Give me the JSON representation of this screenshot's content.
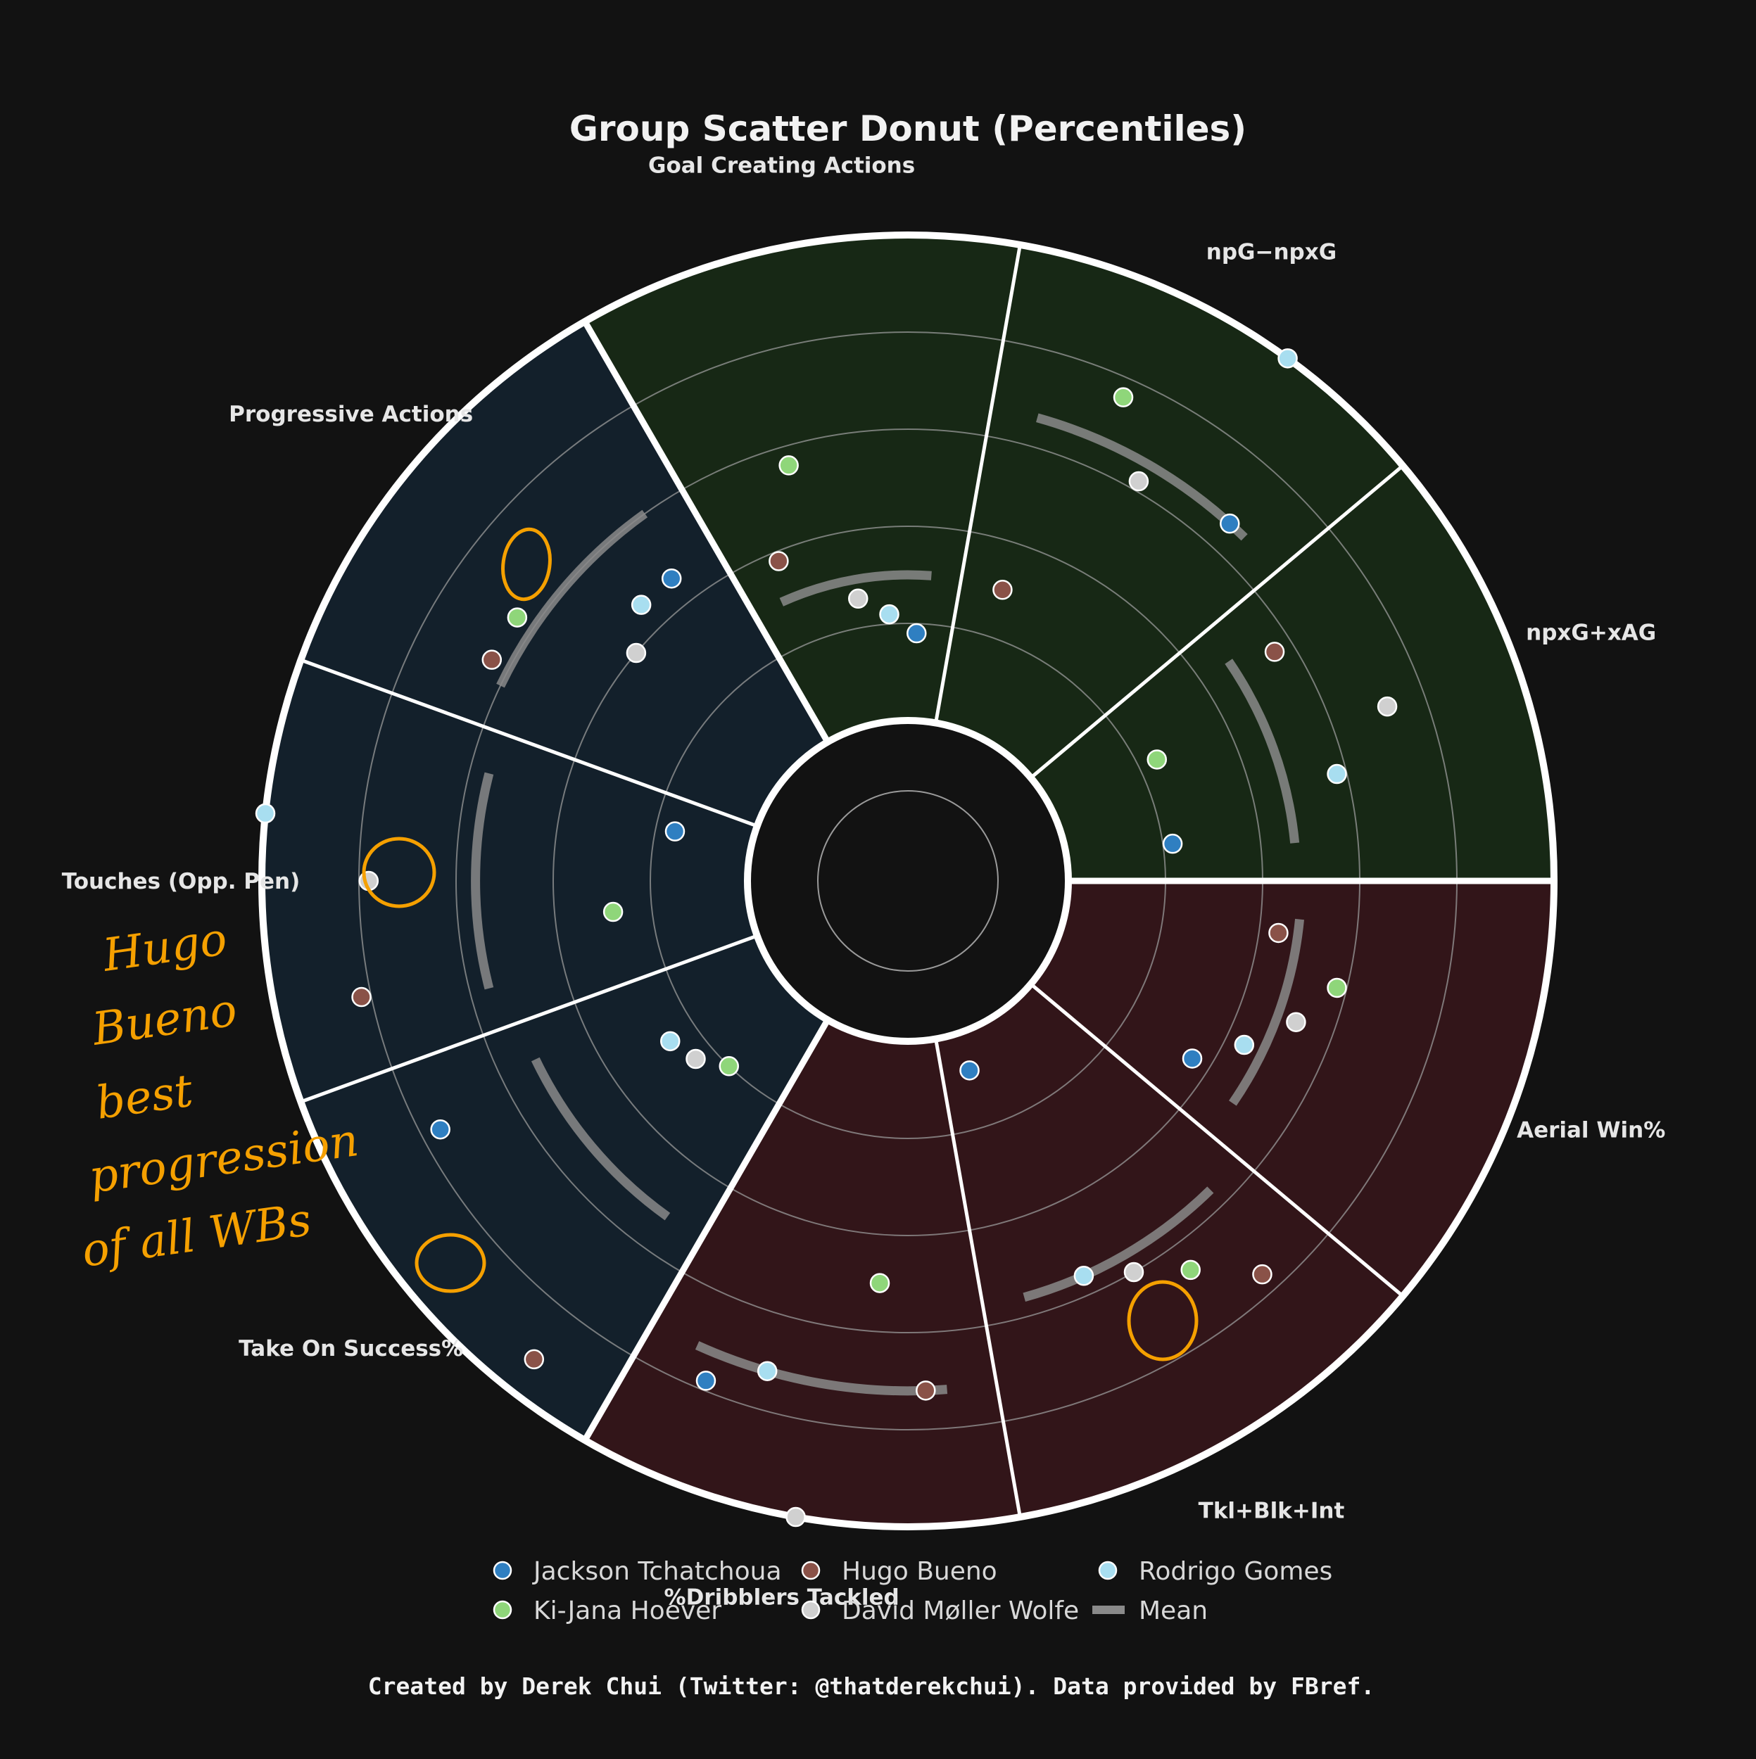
{
  "title": "Group Scatter Donut (Percentiles)",
  "footer": "Created by Derek Chui (Twitter: @thatderekchui). Data provided by FBref.",
  "colors": {
    "background": "#121212",
    "attacking_sector": "#172815",
    "possession_sector": "#13202b",
    "defending_sector": "#321519",
    "ring_border": "#ffffff",
    "gridline": "#9a9a9a",
    "mean_arc": "#8a8a8a",
    "annotation": "#f5a000"
  },
  "annotation_text": [
    "Hugo",
    "Bueno",
    "best",
    "progression",
    "of all WBs"
  ],
  "players": [
    {
      "name": "Jackson Tchatchoua",
      "color": "#2f7fc1"
    },
    {
      "name": "Hugo Bueno",
      "color": "#8a5248"
    },
    {
      "name": "Rodrigo Gomes",
      "color": "#a8def0"
    },
    {
      "name": "Ki-Jana Hoever",
      "color": "#8fd67a"
    },
    {
      "name": "David Møller Wolfe",
      "color": "#d0d0d0"
    }
  ],
  "legend": {
    "items": [
      {
        "label": "Jackson Tchatchoua",
        "kind": "dot",
        "color": "#2f7fc1"
      },
      {
        "label": "Hugo Bueno",
        "kind": "dot",
        "color": "#8a5248"
      },
      {
        "label": "Rodrigo Gomes",
        "kind": "dot",
        "color": "#a8def0"
      },
      {
        "label": "Ki-Jana Hoever",
        "kind": "dot",
        "color": "#8fd67a"
      },
      {
        "label": "David Møller Wolfe",
        "kind": "dot",
        "color": "#d0d0d0"
      },
      {
        "label": "Mean",
        "kind": "line",
        "color": "#8a8a8a"
      }
    ]
  },
  "chart_data": {
    "type": "scatter",
    "projection": "polar donut",
    "title": "Group Scatter Donut (Percentiles)",
    "rlim": [
      0,
      100
    ],
    "grid": true,
    "legend_position": "bottom",
    "categories": [
      {
        "name": "npxG+xAG",
        "group": "attacking",
        "values": {
          "Jackson Tchatchoua": 22,
          "Hugo Bueno": 56,
          "Rodrigo Gomes": 58,
          "Ki-Jana Hoever": 24,
          "David Møller Wolfe": 72
        },
        "mean": 47
      },
      {
        "name": "npG−npxG",
        "group": "attacking",
        "values": {
          "Jackson Tchatchoua": 66,
          "Hugo Bueno": 30,
          "Rodrigo Gomes": 100,
          "Ki-Jana Hoever": 76,
          "David Møller Wolfe": 62
        },
        "mean": 66
      },
      {
        "name": "Goal Creating Actions",
        "group": "attacking",
        "values": {
          "Jackson Tchatchoua": 18,
          "Hugo Bueno": 38,
          "Rodrigo Gomes": 22,
          "Ki-Jana Hoever": 56,
          "David Møller Wolfe": 26
        },
        "mean": 30
      },
      {
        "name": "Progressive Actions",
        "group": "possession",
        "values": {
          "Jackson Tchatchoua": 46,
          "Hugo Bueno": 64,
          "Rodrigo Gomes": 46,
          "Ki-Jana Hoever": 64,
          "David Møller Wolfe": 40
        },
        "mean": 60
      },
      {
        "name": "Touches (Opp. Pen)",
        "group": "possession",
        "values": {
          "Jackson Tchatchoua": 16,
          "Hugo Bueno": 82,
          "Rodrigo Gomes": 100,
          "Ki-Jana Hoever": 28,
          "David Møller Wolfe": 78
        },
        "mean": 56
      },
      {
        "name": "Take On Success%",
        "group": "possession",
        "values": {
          "Jackson Tchatchoua": 76,
          "Hugo Bueno": 92,
          "Rodrigo Gomes": 26,
          "Ki-Jana Hoever": 20,
          "David Møller Wolfe": 24
        },
        "mean": 52
      },
      {
        "name": "%Dribblers Tackled",
        "group": "defending",
        "values": {
          "Jackson Tchatchoua": 78,
          "Hugo Bueno": 72,
          "Rodrigo Gomes": 72,
          "Ki-Jana Hoever": 50,
          "David Møller Wolfe": 100
        },
        "mean": 72
      },
      {
        "name": "Tkl+Blk+Int",
        "group": "defending",
        "values": {
          "Jackson Tchatchoua": 8,
          "Hugo Bueno": 76,
          "Rodrigo Gomes": 56,
          "Ki-Jana Hoever": 66,
          "David Møller Wolfe": 60
        },
        "mean": 56
      },
      {
        "name": "Aerial Win%",
        "group": "defending",
        "values": {
          "Jackson Tchatchoua": 36,
          "Hugo Bueno": 44,
          "Rodrigo Gomes": 44,
          "Ki-Jana Hoever": 58,
          "David Møller Wolfe": 52
        },
        "mean": 48
      }
    ]
  }
}
